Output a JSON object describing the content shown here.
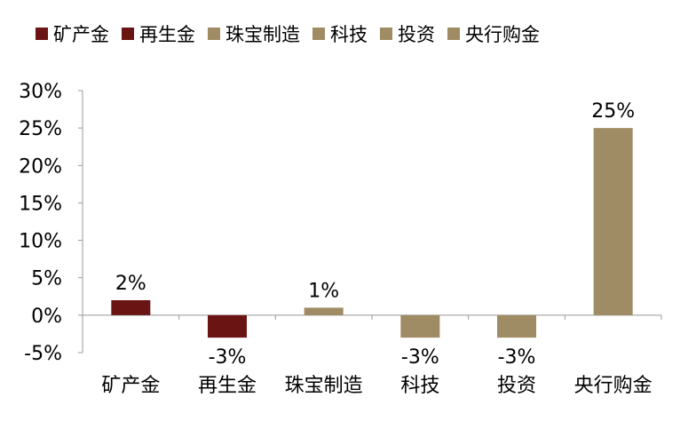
{
  "chart_data": {
    "type": "bar",
    "categories": [
      "矿产金",
      "再生金",
      "珠宝制造",
      "科技",
      "投资",
      "央行购金"
    ],
    "values": [
      2,
      -3,
      1,
      -3,
      -3,
      25
    ],
    "data_labels": [
      "2%",
      "-3%",
      "1%",
      "-3%",
      "-3%",
      "25%"
    ],
    "colors": [
      "#6b1414",
      "#6b1414",
      "#a08c64",
      "#a08c64",
      "#a08c64",
      "#a08c64"
    ],
    "ylim": [
      -5,
      30
    ],
    "yticks": [
      30,
      25,
      20,
      15,
      10,
      5,
      0,
      -5
    ],
    "ytick_labels": [
      "30%",
      "25%",
      "20%",
      "15%",
      "10%",
      "5%",
      "0%",
      "-5%"
    ],
    "legend_placement": "top",
    "grid": false
  }
}
